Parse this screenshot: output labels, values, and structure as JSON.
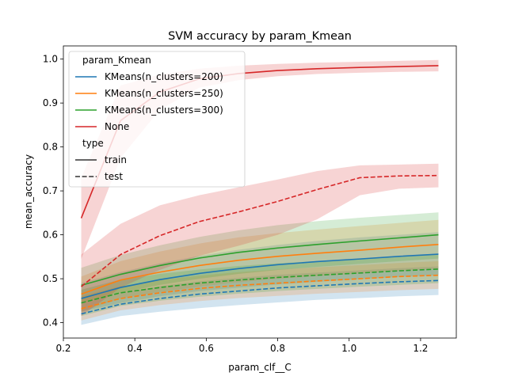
{
  "chart_data": {
    "type": "line",
    "title": "SVM accuracy by param_Kmean",
    "xlabel": "param_clf__C",
    "ylabel": "mean_accuracy",
    "xlim": [
      0.2,
      1.3
    ],
    "ylim": [
      0.365,
      1.03
    ],
    "xticks": [
      0.2,
      0.4,
      0.6,
      0.8,
      1.0,
      1.2
    ],
    "xtick_labels": [
      "0.2",
      "0.4",
      "0.6",
      "0.8",
      "1.0",
      "1.2"
    ],
    "yticks": [
      0.4,
      0.5,
      0.6,
      0.7,
      0.8,
      0.9,
      1.0
    ],
    "ytick_labels": [
      "0.4",
      "0.5",
      "0.6",
      "0.7",
      "0.8",
      "0.9",
      "1.0"
    ],
    "grid": false,
    "legend": {
      "placement": "top-left",
      "hue_title": "param_Kmean",
      "style_title": "type",
      "style_entries": [
        {
          "label": "train",
          "dash": "solid"
        },
        {
          "label": "test",
          "dash": "dashed"
        }
      ]
    },
    "x": [
      0.25,
      0.36,
      0.47,
      0.58,
      0.69,
      0.8,
      0.91,
      1.03,
      1.14,
      1.25
    ],
    "series": [
      {
        "name": "KMeans(n_clusters=200)",
        "color": "#1f77b4",
        "type": "train",
        "values": [
          0.455,
          0.48,
          0.498,
          0.512,
          0.523,
          0.532,
          0.539,
          0.545,
          0.551,
          0.556
        ],
        "lower": [
          0.425,
          0.445,
          0.46,
          0.472,
          0.48,
          0.487,
          0.493,
          0.499,
          0.504,
          0.508
        ],
        "upper": [
          0.49,
          0.515,
          0.535,
          0.552,
          0.566,
          0.577,
          0.586,
          0.594,
          0.6,
          0.606
        ]
      },
      {
        "name": "KMeans(n_clusters=200)",
        "color": "#1f77b4",
        "type": "test",
        "values": [
          0.42,
          0.442,
          0.455,
          0.465,
          0.472,
          0.479,
          0.484,
          0.489,
          0.493,
          0.496
        ],
        "lower": [
          0.395,
          0.415,
          0.425,
          0.433,
          0.44,
          0.446,
          0.452,
          0.456,
          0.46,
          0.463
        ],
        "upper": [
          0.445,
          0.468,
          0.483,
          0.494,
          0.502,
          0.509,
          0.514,
          0.519,
          0.524,
          0.528
        ]
      },
      {
        "name": "KMeans(n_clusters=250)",
        "color": "#ff7f0e",
        "type": "train",
        "values": [
          0.465,
          0.497,
          0.515,
          0.53,
          0.542,
          0.551,
          0.558,
          0.565,
          0.572,
          0.578
        ],
        "lower": [
          0.425,
          0.455,
          0.47,
          0.482,
          0.492,
          0.5,
          0.506,
          0.512,
          0.518,
          0.523
        ],
        "upper": [
          0.505,
          0.54,
          0.562,
          0.58,
          0.594,
          0.604,
          0.612,
          0.62,
          0.627,
          0.634
        ]
      },
      {
        "name": "KMeans(n_clusters=250)",
        "color": "#ff7f0e",
        "type": "test",
        "values": [
          0.432,
          0.455,
          0.468,
          0.478,
          0.485,
          0.49,
          0.495,
          0.5,
          0.505,
          0.508
        ],
        "lower": [
          0.405,
          0.428,
          0.44,
          0.449,
          0.456,
          0.461,
          0.466,
          0.47,
          0.474,
          0.477
        ],
        "upper": [
          0.46,
          0.483,
          0.497,
          0.507,
          0.515,
          0.521,
          0.526,
          0.531,
          0.536,
          0.54
        ]
      },
      {
        "name": "KMeans(n_clusters=300)",
        "color": "#2ca02c",
        "type": "train",
        "values": [
          0.485,
          0.51,
          0.53,
          0.547,
          0.56,
          0.57,
          0.578,
          0.586,
          0.593,
          0.6
        ],
        "lower": [
          0.445,
          0.468,
          0.486,
          0.5,
          0.511,
          0.52,
          0.527,
          0.534,
          0.54,
          0.546
        ],
        "upper": [
          0.525,
          0.554,
          0.576,
          0.595,
          0.61,
          0.622,
          0.631,
          0.639,
          0.645,
          0.651
        ]
      },
      {
        "name": "KMeans(n_clusters=300)",
        "color": "#2ca02c",
        "type": "test",
        "values": [
          0.445,
          0.468,
          0.48,
          0.49,
          0.497,
          0.503,
          0.508,
          0.513,
          0.518,
          0.522
        ],
        "lower": [
          0.415,
          0.438,
          0.45,
          0.459,
          0.466,
          0.472,
          0.477,
          0.482,
          0.486,
          0.49
        ],
        "upper": [
          0.475,
          0.498,
          0.511,
          0.521,
          0.529,
          0.535,
          0.54,
          0.545,
          0.55,
          0.555
        ]
      },
      {
        "name": "None",
        "color": "#d62728",
        "type": "train",
        "values": [
          0.638,
          0.86,
          0.925,
          0.955,
          0.967,
          0.974,
          0.978,
          0.981,
          0.983,
          0.985
        ],
        "lower": [
          0.545,
          0.775,
          0.885,
          0.935,
          0.952,
          0.961,
          0.966,
          0.969,
          0.971,
          0.972
        ],
        "upper": [
          0.73,
          0.94,
          0.965,
          0.978,
          0.985,
          0.989,
          0.992,
          0.994,
          0.996,
          0.998
        ]
      },
      {
        "name": "None",
        "color": "#d62728",
        "type": "test",
        "values": [
          0.482,
          0.555,
          0.598,
          0.63,
          0.652,
          0.676,
          0.703,
          0.73,
          0.734,
          0.735
        ],
        "lower": [
          0.415,
          0.48,
          0.52,
          0.552,
          0.575,
          0.6,
          0.635,
          0.69,
          0.705,
          0.708
        ],
        "upper": [
          0.555,
          0.625,
          0.667,
          0.69,
          0.708,
          0.726,
          0.745,
          0.758,
          0.76,
          0.762
        ]
      }
    ]
  }
}
